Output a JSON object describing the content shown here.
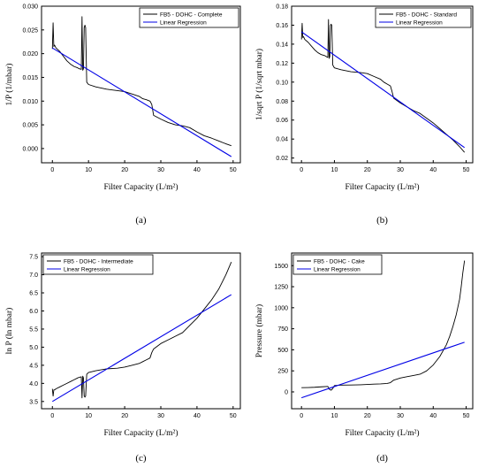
{
  "colors": {
    "data": "#000000",
    "regression": "#0000e6"
  },
  "chart_data": [
    {
      "type": "line",
      "panel_label": "(a)",
      "xlabel": "Filter Capacity (L/m²)",
      "ylabel": "1/P (1/mbar)",
      "xlim": [
        -3,
        52
      ],
      "ylim": [
        -0.003,
        0.03
      ],
      "x_ticks": [
        0,
        10,
        20,
        30,
        40,
        50
      ],
      "y_ticks": [
        0.0,
        0.005,
        0.01,
        0.015,
        0.02,
        0.025,
        0.03
      ],
      "y_tick_labels": [
        "0.000",
        "0.005",
        "0.010",
        "0.015",
        "0.020",
        "0.025",
        "0.030"
      ],
      "legend": "top-right",
      "series": [
        {
          "name": "FB5 - DOHC - Complete",
          "kind": "data",
          "x": [
            0,
            0.2,
            0.4,
            0.6,
            1,
            2,
            3,
            4,
            5,
            6,
            7,
            7.5,
            8,
            8.2,
            8.4,
            8.6,
            8.8,
            9,
            9.2,
            9.5,
            10,
            12,
            15,
            18,
            20,
            22,
            24,
            25,
            26,
            27,
            27.5,
            28,
            30,
            32,
            34,
            36,
            38,
            40,
            42,
            44,
            46,
            48,
            49.5
          ],
          "y": [
            0.021,
            0.0265,
            0.0215,
            0.0218,
            0.0212,
            0.0205,
            0.0195,
            0.0185,
            0.0178,
            0.0173,
            0.017,
            0.0168,
            0.0167,
            0.0278,
            0.0165,
            0.0168,
            0.0255,
            0.026,
            0.0255,
            0.014,
            0.0135,
            0.013,
            0.0125,
            0.0122,
            0.012,
            0.0115,
            0.011,
            0.0105,
            0.0103,
            0.01,
            0.0093,
            0.007,
            0.0062,
            0.0055,
            0.005,
            0.0048,
            0.0044,
            0.0035,
            0.0027,
            0.0022,
            0.0016,
            0.001,
            0.0006
          ]
        },
        {
          "name": "Linear Regression",
          "kind": "regression",
          "x": [
            0,
            49.5
          ],
          "y": [
            0.0212,
            -0.0017
          ]
        }
      ]
    },
    {
      "type": "line",
      "panel_label": "(b)",
      "xlabel": "Filter Capacity (L/m²)",
      "ylabel": "1/sqrt P (1/sqrt mbar)",
      "xlim": [
        -3,
        52
      ],
      "ylim": [
        0.015,
        0.18
      ],
      "x_ticks": [
        0,
        10,
        20,
        30,
        40,
        50
      ],
      "y_ticks": [
        0.02,
        0.04,
        0.06,
        0.08,
        0.1,
        0.12,
        0.14,
        0.16,
        0.18
      ],
      "y_tick_labels": [
        "0.02",
        "0.04",
        "0.06",
        "0.08",
        "0.10",
        "0.12",
        "0.14",
        "0.16",
        "0.18"
      ],
      "legend": "top-right",
      "series": [
        {
          "name": "FB5 - DOHC - Standard",
          "kind": "data",
          "x": [
            0,
            0.2,
            0.4,
            0.6,
            1,
            2,
            3,
            4,
            5,
            6,
            7,
            7.5,
            8,
            8.2,
            8.4,
            8.6,
            8.8,
            9,
            9.2,
            9.5,
            10,
            12,
            15,
            18,
            20,
            22,
            24,
            25,
            26,
            27,
            27.5,
            28,
            30,
            32,
            34,
            36,
            38,
            40,
            42,
            44,
            46,
            48,
            49.5
          ],
          "y": [
            0.145,
            0.162,
            0.147,
            0.148,
            0.145,
            0.142,
            0.138,
            0.134,
            0.131,
            0.129,
            0.128,
            0.127,
            0.126,
            0.166,
            0.125,
            0.127,
            0.16,
            0.161,
            0.16,
            0.118,
            0.115,
            0.113,
            0.111,
            0.11,
            0.109,
            0.106,
            0.103,
            0.1,
            0.098,
            0.096,
            0.09,
            0.083,
            0.078,
            0.074,
            0.07,
            0.067,
            0.062,
            0.057,
            0.051,
            0.045,
            0.039,
            0.032,
            0.026
          ]
        },
        {
          "name": "Linear Regression",
          "kind": "regression",
          "x": [
            0,
            49.5
          ],
          "y": [
            0.153,
            0.031
          ]
        }
      ]
    },
    {
      "type": "line",
      "panel_label": "(c)",
      "xlabel": "Filter Capacity (L/m²)",
      "ylabel": "ln P (ln mbar)",
      "xlim": [
        -3,
        52
      ],
      "ylim": [
        3.3,
        7.6
      ],
      "x_ticks": [
        0,
        10,
        20,
        30,
        40,
        50
      ],
      "y_ticks": [
        3.5,
        4.0,
        4.5,
        5.0,
        5.5,
        6.0,
        6.5,
        7.0,
        7.5
      ],
      "y_tick_labels": [
        "3.5",
        "4.0",
        "4.5",
        "5.0",
        "5.5",
        "6.0",
        "6.5",
        "7.0",
        "7.5"
      ],
      "legend": "top-left",
      "series": [
        {
          "name": "FB5 - DOHC - Intermediate",
          "kind": "data",
          "x": [
            0,
            0.2,
            0.4,
            0.6,
            1,
            2,
            3,
            4,
            5,
            6,
            7,
            7.5,
            8,
            8.2,
            8.4,
            8.6,
            8.8,
            9,
            9.2,
            9.5,
            10,
            12,
            15,
            18,
            20,
            22,
            24,
            25,
            26,
            27,
            27.5,
            28,
            30,
            32,
            34,
            36,
            38,
            40,
            42,
            44,
            46,
            48,
            49.5
          ],
          "y": [
            3.85,
            3.65,
            3.82,
            3.82,
            3.85,
            3.9,
            3.95,
            4.0,
            4.05,
            4.1,
            4.15,
            4.17,
            4.18,
            3.6,
            4.2,
            4.15,
            3.65,
            3.62,
            3.65,
            4.25,
            4.3,
            4.35,
            4.4,
            4.42,
            4.45,
            4.5,
            4.55,
            4.6,
            4.65,
            4.7,
            4.85,
            4.95,
            5.1,
            5.2,
            5.3,
            5.4,
            5.6,
            5.8,
            6.05,
            6.3,
            6.6,
            7.0,
            7.35
          ]
        },
        {
          "name": "Linear Regression",
          "kind": "regression",
          "x": [
            0,
            49.5
          ],
          "y": [
            3.5,
            6.45
          ]
        }
      ]
    },
    {
      "type": "line",
      "panel_label": "(d)",
      "xlabel": "Filter Capacity (L/m²)",
      "ylabel": "Pressure (mbar)",
      "xlim": [
        -3,
        52
      ],
      "ylim": [
        -200,
        1650
      ],
      "x_ticks": [
        0,
        10,
        20,
        30,
        40,
        50
      ],
      "y_ticks": [
        0,
        250,
        500,
        750,
        1000,
        1250,
        1500
      ],
      "y_tick_labels": [
        "0",
        "250",
        "500",
        "750",
        "1000",
        "1250",
        "1500"
      ],
      "legend": "top-left",
      "series": [
        {
          "name": "FB5 - DOHC - Cake",
          "kind": "data",
          "x": [
            0,
            2,
            4,
            6,
            8,
            8.5,
            9,
            9.5,
            10,
            12,
            15,
            18,
            20,
            22,
            24,
            26,
            27,
            28,
            30,
            32,
            34,
            36,
            38,
            40,
            42,
            44,
            45,
            46,
            47,
            48,
            48.5,
            49,
            49.5
          ],
          "y": [
            50,
            52,
            55,
            60,
            65,
            30,
            20,
            40,
            75,
            80,
            82,
            85,
            88,
            92,
            95,
            100,
            110,
            140,
            165,
            180,
            195,
            210,
            250,
            320,
            420,
            560,
            660,
            780,
            920,
            1100,
            1250,
            1420,
            1560
          ]
        },
        {
          "name": "Linear Regression",
          "kind": "regression",
          "x": [
            0,
            49.5
          ],
          "y": [
            -70,
            590
          ]
        }
      ]
    }
  ]
}
